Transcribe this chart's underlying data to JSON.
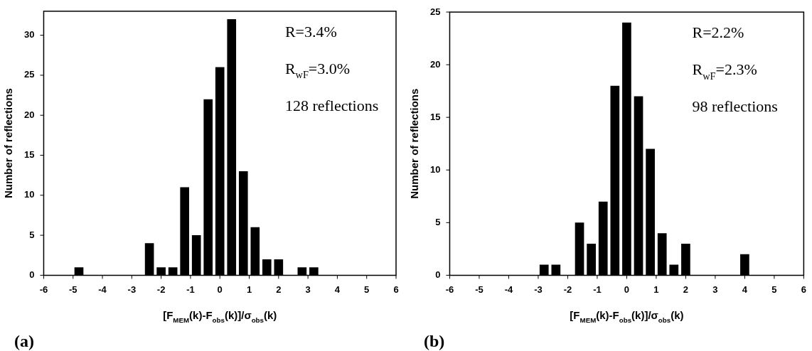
{
  "chart_data": [
    {
      "type": "histogram",
      "xlabel": "[F$_{MEM}$(k)-F$_{obs}$(k)]/σ$_{obs}$(k)",
      "ylabel": "Number of reflections",
      "color": "#000000",
      "bins": [
        -5.0,
        -4.6,
        -4.2,
        -3.8,
        -3.4,
        -3.0,
        -2.6,
        -2.2,
        -1.8,
        -1.4,
        -1.0,
        -0.6,
        -0.2,
        0.2,
        0.6,
        1.0,
        1.4,
        1.8,
        2.2,
        2.6,
        3.0,
        3.4
      ],
      "values": [
        1,
        0,
        0,
        0,
        0,
        0,
        4,
        1,
        1,
        11,
        5,
        22,
        26,
        32,
        13,
        6,
        2,
        2,
        0,
        1,
        1
      ],
      "xlim": [
        -6,
        6
      ],
      "xticks": [
        -6,
        -5,
        -4,
        -3,
        -2,
        -1,
        0,
        1,
        2,
        3,
        4,
        5,
        6
      ],
      "ylim": [
        0,
        33
      ],
      "yticks": [
        0,
        5,
        10,
        15,
        20,
        25,
        30
      ],
      "grid": false,
      "legend": false,
      "annotations": [
        "R=3.4%",
        "R$_{wF}$=3.0%",
        "128 reflections",
        "(a)"
      ]
    },
    {
      "type": "histogram",
      "xlabel": "[F$_{MEM}$(k)-F$_{obs}$(k)]/σ$_{obs}$(k)",
      "ylabel": "Number of reflections",
      "color": "#000000",
      "bins": [
        -3.0,
        -2.6,
        -2.2,
        -1.8,
        -1.4,
        -1.0,
        -0.6,
        -0.2,
        0.2,
        0.6,
        1.0,
        1.4,
        1.8,
        2.2,
        2.6,
        3.0,
        3.4,
        3.8,
        4.2
      ],
      "values": [
        1,
        1,
        0,
        5,
        3,
        7,
        18,
        24,
        17,
        12,
        4,
        1,
        3,
        0,
        0,
        0,
        0,
        2
      ],
      "xlim": [
        -6,
        6
      ],
      "xticks": [
        -6,
        -5,
        -4,
        -3,
        -2,
        -1,
        0,
        1,
        2,
        3,
        4,
        5,
        6
      ],
      "ylim": [
        0,
        25
      ],
      "yticks": [
        0,
        5,
        10,
        15,
        20,
        25
      ],
      "grid": false,
      "legend": false,
      "annotations": [
        "R=2.2%",
        "R$_{wF}$=2.3%",
        "98 reflections",
        "(b)"
      ]
    }
  ]
}
